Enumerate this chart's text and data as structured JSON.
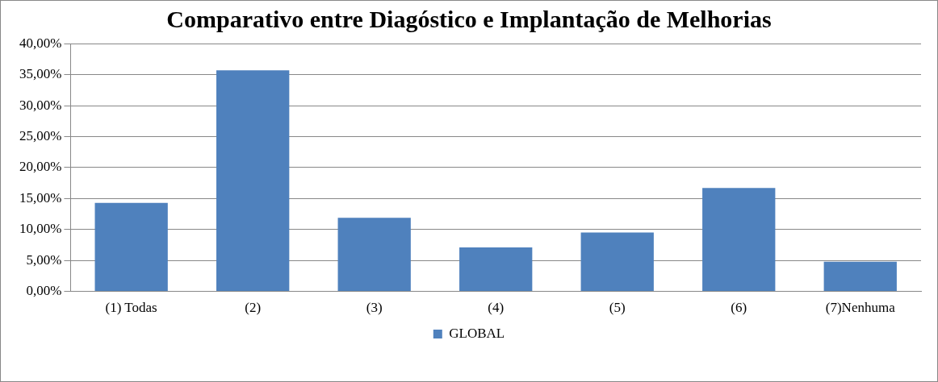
{
  "chart_data": {
    "type": "bar",
    "title": "Comparativo entre Diagóstico e Implantação de Melhorias",
    "categories": [
      "(1) Todas",
      "(2)",
      "(3)",
      "(4)",
      "(5)",
      "(6)",
      "(7)Nenhuma"
    ],
    "series": [
      {
        "name": "GLOBAL",
        "color": "#4f81bd",
        "values": [
          14.3,
          35.7,
          11.9,
          7.1,
          9.5,
          16.7,
          4.8
        ]
      }
    ],
    "ylim": [
      0,
      40
    ],
    "yticks": [
      {
        "value": 0,
        "label": "0,00%"
      },
      {
        "value": 5,
        "label": "5,00%"
      },
      {
        "value": 10,
        "label": "10,00%"
      },
      {
        "value": 15,
        "label": "15,00%"
      },
      {
        "value": 20,
        "label": "20,00%"
      },
      {
        "value": 25,
        "label": "25,00%"
      },
      {
        "value": 30,
        "label": "30,00%"
      },
      {
        "value": 35,
        "label": "35,00%"
      },
      {
        "value": 40,
        "label": "40,00%"
      }
    ],
    "grid": "y",
    "legend": "bottom"
  }
}
